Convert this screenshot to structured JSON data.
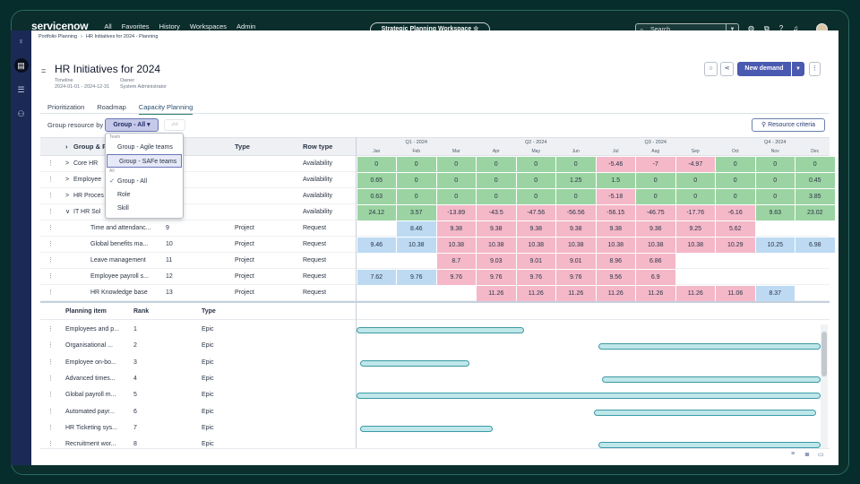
{
  "app": {
    "logo_text": "servicenow",
    "nav": [
      "All",
      "Favorites",
      "History",
      "Workspaces",
      "Admin"
    ],
    "workspace": "Strategic Planning Workspace ☆",
    "search_placeholder": "Search"
  },
  "breadcrumb": [
    "Portfolio Planning",
    "›",
    "HR Initiatives for 2024 - Planning"
  ],
  "page": {
    "title": "HR Initiatives for 2024",
    "timeline_label": "Timeline",
    "timeline_value": "2024-01-01 - 2024-12-31",
    "owner_label": "Owner",
    "owner_value": "System Administrator",
    "new_demand": "New demand"
  },
  "tabs": [
    "Prioritization",
    "Roadmap",
    "Capacity Planning"
  ],
  "controls": {
    "group_label": "Group resource by",
    "group_value": "Group - All ▾",
    "resource_criteria": "Resource criteria"
  },
  "dropdown": {
    "header_team": "Team",
    "items_team": [
      "Group - Agile teams",
      "Group - SAFe teams"
    ],
    "header_all": "All",
    "items_all": [
      "Group - All",
      "Role",
      "Skill"
    ]
  },
  "grid": {
    "headers": {
      "group": "Group & P",
      "type": "Type",
      "row_type": "Row type"
    },
    "quarters": [
      "Q1 - 2024",
      "Q2 - 2024",
      "Q3 - 2024",
      "Q4 - 2024"
    ],
    "months": [
      "Jan",
      "Feb",
      "Mar",
      "Apr",
      "May",
      "Jun",
      "Jul",
      "Aug",
      "Sep",
      "Oct",
      "Nov",
      "Dec"
    ],
    "rows": [
      {
        "name": "Core HR",
        "rank": "",
        "type": "",
        "rowtype": "Availability",
        "caret": ">",
        "values": [
          "0",
          "0",
          "0",
          "0",
          "0",
          "0",
          "-5.46",
          "-7",
          "-4.97",
          "0",
          "0",
          "0"
        ],
        "colors": [
          "g",
          "g",
          "g",
          "g",
          "g",
          "g",
          "p",
          "p",
          "p",
          "g",
          "g",
          "g"
        ]
      },
      {
        "name": "Employee",
        "rank": "",
        "type": "",
        "rowtype": "Availability",
        "caret": ">",
        "values": [
          "0.65",
          "0",
          "0",
          "0",
          "0",
          "1.25",
          "1.5",
          "0",
          "0",
          "0",
          "0",
          "0.45"
        ],
        "colors": [
          "g",
          "g",
          "g",
          "g",
          "g",
          "g",
          "g",
          "g",
          "g",
          "g",
          "g",
          "g"
        ]
      },
      {
        "name": "HR Proces",
        "rank": "",
        "type": "",
        "rowtype": "Availability",
        "caret": ">",
        "values": [
          "0.63",
          "0",
          "0",
          "0",
          "0",
          "0",
          "-5.18",
          "0",
          "0",
          "0",
          "0",
          "3.85"
        ],
        "colors": [
          "g",
          "g",
          "g",
          "g",
          "g",
          "g",
          "p",
          "g",
          "g",
          "g",
          "g",
          "g"
        ]
      },
      {
        "name": "IT HR Sol",
        "rank": "",
        "type": "",
        "rowtype": "Availability",
        "caret": "∨",
        "values": [
          "24.12",
          "3.57",
          "-13.89",
          "-43.5",
          "-47.56",
          "-56.56",
          "-56.15",
          "-46.75",
          "-17.76",
          "-6.16",
          "9.63",
          "23.02"
        ],
        "colors": [
          "g",
          "g",
          "p",
          "p",
          "p",
          "p",
          "p",
          "p",
          "p",
          "p",
          "g",
          "g"
        ]
      },
      {
        "name": "Time and attendanc...",
        "rank": "9",
        "type": "Project",
        "rowtype": "Request",
        "caret": "",
        "values": [
          "",
          "8.46",
          "9.38",
          "9.38",
          "9.38",
          "9.38",
          "9.38",
          "9.36",
          "9.25",
          "5.62",
          "",
          ""
        ],
        "colors": [
          "",
          "b",
          "p",
          "p",
          "p",
          "p",
          "p",
          "p",
          "p",
          "p",
          "",
          ""
        ]
      },
      {
        "name": "Global benefits ma...",
        "rank": "10",
        "type": "Project",
        "rowtype": "Request",
        "caret": "",
        "values": [
          "9.46",
          "10.38",
          "10.38",
          "10.38",
          "10.38",
          "10.38",
          "10.38",
          "10.38",
          "10.38",
          "10.29",
          "10.25",
          "6.98"
        ],
        "colors": [
          "b",
          "b",
          "p",
          "p",
          "p",
          "p",
          "p",
          "p",
          "p",
          "p",
          "b",
          "b"
        ]
      },
      {
        "name": "Leave management",
        "rank": "11",
        "type": "Project",
        "rowtype": "Request",
        "caret": "",
        "values": [
          "",
          "",
          "8.7",
          "9.03",
          "9.01",
          "9.01",
          "8.96",
          "6.86",
          "",
          "",
          "",
          ""
        ],
        "colors": [
          "",
          "",
          "p",
          "p",
          "p",
          "p",
          "p",
          "p",
          "",
          "",
          "",
          ""
        ]
      },
      {
        "name": "Employee payroll s...",
        "rank": "12",
        "type": "Project",
        "rowtype": "Request",
        "caret": "",
        "values": [
          "7.62",
          "9.76",
          "9.76",
          "9.76",
          "9.76",
          "9.76",
          "9.56",
          "6.9",
          "",
          "",
          "",
          ""
        ],
        "colors": [
          "b",
          "b",
          "p",
          "p",
          "p",
          "p",
          "p",
          "p",
          "",
          "",
          "",
          ""
        ]
      },
      {
        "name": "HR Knowledge base",
        "rank": "13",
        "type": "Project",
        "rowtype": "Request",
        "caret": "",
        "values": [
          "",
          "",
          "",
          "11.26",
          "11.26",
          "11.26",
          "11.26",
          "11.26",
          "11.26",
          "11.06",
          "8.37",
          ""
        ],
        "colors": [
          "",
          "",
          "",
          "p",
          "p",
          "p",
          "p",
          "p",
          "p",
          "p",
          "b",
          ""
        ]
      }
    ]
  },
  "planning": {
    "headers": {
      "item": "Planning item",
      "rank": "Rank",
      "type": "Type"
    },
    "rows": [
      {
        "name": "Employees and p...",
        "rank": "1",
        "type": "Epic",
        "start_month": 0,
        "end_month": 4.3
      },
      {
        "name": "Organisational ...",
        "rank": "2",
        "type": "Epic",
        "start_month": 6.2,
        "end_month": 11.9
      },
      {
        "name": "Employee on-bo...",
        "rank": "3",
        "type": "Epic",
        "start_month": 0.1,
        "end_month": 2.9
      },
      {
        "name": "Advanced times...",
        "rank": "4",
        "type": "Epic",
        "start_month": 6.3,
        "end_month": 11.9
      },
      {
        "name": "Global payroll m...",
        "rank": "5",
        "type": "Epic",
        "start_month": 0,
        "end_month": 11.9
      },
      {
        "name": "Automated payr...",
        "rank": "6",
        "type": "Epic",
        "start_month": 6.1,
        "end_month": 11.8
      },
      {
        "name": "HR Ticketing sys...",
        "rank": "7",
        "type": "Epic",
        "start_month": 0.1,
        "end_month": 3.5
      },
      {
        "name": "Recruitment wor...",
        "rank": "8",
        "type": "Epic",
        "start_month": 6.2,
        "end_month": 11.9
      }
    ]
  }
}
